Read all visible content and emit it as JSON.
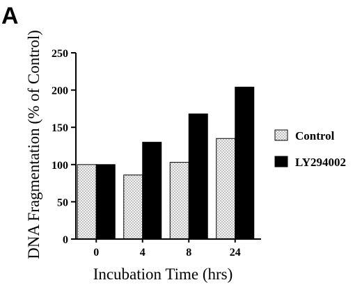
{
  "panel_label": "A",
  "chart_data": {
    "type": "bar",
    "title": "",
    "xlabel": "Incubation Time (hrs)",
    "ylabel": "DNA Fragmentation (% of Control)",
    "categories": [
      "0",
      "4",
      "8",
      "24"
    ],
    "ylim": [
      0,
      250
    ],
    "yticks": [
      0,
      50,
      100,
      150,
      200,
      250
    ],
    "grid": false,
    "legend_position": "right",
    "series": [
      {
        "name": "Control",
        "values": [
          100,
          86,
          103,
          135
        ],
        "fill": "dotted-light"
      },
      {
        "name": "LY294002",
        "values": [
          100,
          130,
          168,
          204
        ],
        "fill": "#000000"
      }
    ]
  }
}
